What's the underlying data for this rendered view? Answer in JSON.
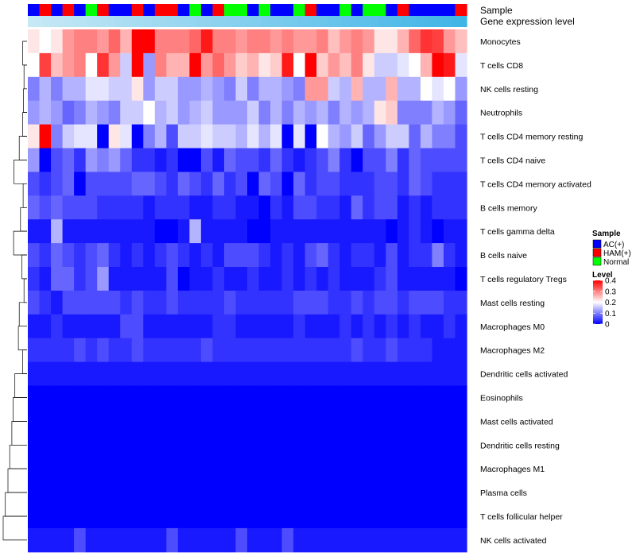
{
  "chart_data": {
    "type": "heatmap",
    "annotation_labels": [
      "Sample",
      "Gene expression level"
    ],
    "sample_groups": [
      "AC(+)",
      "HAM(+)",
      "AC(+)",
      "HAM(+)",
      "AC(+)",
      "Normal",
      "HAM(+)",
      "AC(+)",
      "AC(+)",
      "HAM(+)",
      "AC(+)",
      "HAM(+)",
      "HAM(+)",
      "AC(+)",
      "Normal",
      "AC(+)",
      "HAM(+)",
      "Normal",
      "Normal",
      "AC(+)",
      "Normal",
      "AC(+)",
      "AC(+)",
      "Normal",
      "HAM(+)",
      "AC(+)",
      "AC(+)",
      "Normal",
      "AC(+)",
      "Normal",
      "Normal",
      "AC(+)",
      "HAM(+)",
      "AC(+)",
      "AC(+)",
      "AC(+)",
      "AC(+)",
      "HAM(+)"
    ],
    "expression_gradient": [
      "#c7e9f5",
      "#3fb4e6"
    ],
    "rows": [
      "Monocytes",
      "T cells CD8",
      "NK cells resting",
      "Neutrophils",
      "T cells CD4 memory resting",
      "T cells CD4 naive",
      "T cells CD4 memory activated",
      "B cells memory",
      "T cells gamma delta",
      "B cells naive",
      "T cells regulatory  Tregs",
      "Mast cells resting",
      "Macrophages M0",
      "Macrophages M2",
      "Dendritic cells activated",
      "Eosinophils",
      "Mast cells activated",
      "Dendritic cells resting",
      "Macrophages M1",
      "Plasma cells",
      "T cells follicular helper",
      "NK cells activated"
    ],
    "values": [
      [
        0.22,
        0.2,
        0.22,
        0.28,
        0.3,
        0.3,
        0.28,
        0.32,
        0.26,
        0.4,
        0.4,
        0.3,
        0.3,
        0.3,
        0.32,
        0.38,
        0.3,
        0.3,
        0.28,
        0.3,
        0.3,
        0.28,
        0.3,
        0.28,
        0.28,
        0.3,
        0.25,
        0.28,
        0.3,
        0.28,
        0.22,
        0.22,
        0.26,
        0.32,
        0.36,
        0.35,
        0.28,
        0.25
      ],
      [
        0.2,
        0.35,
        0.25,
        0.28,
        0.3,
        0.2,
        0.36,
        0.28,
        0.16,
        0.4,
        0.12,
        0.3,
        0.26,
        0.26,
        0.4,
        0.28,
        0.32,
        0.28,
        0.24,
        0.26,
        0.22,
        0.24,
        0.38,
        0.2,
        0.4,
        0.24,
        0.28,
        0.25,
        0.3,
        0.22,
        0.16,
        0.16,
        0.18,
        0.2,
        0.26,
        0.4,
        0.38,
        0.18
      ],
      [
        0.1,
        0.14,
        0.1,
        0.14,
        0.14,
        0.18,
        0.18,
        0.16,
        0.16,
        0.22,
        0.12,
        0.16,
        0.16,
        0.12,
        0.12,
        0.14,
        0.12,
        0.1,
        0.16,
        0.1,
        0.14,
        0.14,
        0.12,
        0.1,
        0.28,
        0.28,
        0.16,
        0.14,
        0.26,
        0.14,
        0.14,
        0.26,
        0.14,
        0.14,
        0.2,
        0.18,
        0.2,
        0.12
      ],
      [
        0.12,
        0.14,
        0.12,
        0.08,
        0.1,
        0.14,
        0.12,
        0.1,
        0.16,
        0.16,
        0.2,
        0.14,
        0.16,
        0.12,
        0.14,
        0.16,
        0.12,
        0.12,
        0.12,
        0.16,
        0.1,
        0.14,
        0.1,
        0.14,
        0.12,
        0.14,
        0.1,
        0.14,
        0.12,
        0.14,
        0.22,
        0.24,
        0.1,
        0.1,
        0.1,
        0.14,
        0.12,
        0.08
      ],
      [
        0.22,
        0.4,
        0.1,
        0.16,
        0.18,
        0.18,
        0.0,
        0.22,
        0.18,
        0.0,
        0.1,
        0.14,
        0.06,
        0.16,
        0.16,
        0.18,
        0.16,
        0.16,
        0.14,
        0.18,
        0.14,
        0.18,
        0.0,
        0.18,
        0.0,
        0.2,
        0.14,
        0.12,
        0.16,
        0.08,
        0.12,
        0.16,
        0.16,
        0.08,
        0.14,
        0.1,
        0.1,
        0.06
      ],
      [
        0.12,
        0.0,
        0.06,
        0.08,
        0.04,
        0.12,
        0.1,
        0.12,
        0.08,
        0.04,
        0.04,
        0.02,
        0.04,
        0.0,
        0.0,
        0.06,
        0.02,
        0.08,
        0.06,
        0.06,
        0.04,
        0.08,
        0.04,
        0.02,
        0.04,
        0.06,
        0.1,
        0.04,
        0.0,
        0.06,
        0.06,
        0.1,
        0.04,
        0.08,
        0.06,
        0.06,
        0.06,
        0.06
      ],
      [
        0.06,
        0.04,
        0.06,
        0.08,
        0.0,
        0.06,
        0.06,
        0.06,
        0.06,
        0.08,
        0.08,
        0.06,
        0.04,
        0.08,
        0.06,
        0.04,
        0.08,
        0.04,
        0.06,
        0.0,
        0.08,
        0.06,
        0.0,
        0.08,
        0.04,
        0.06,
        0.06,
        0.04,
        0.04,
        0.04,
        0.06,
        0.06,
        0.04,
        0.08,
        0.06,
        0.04,
        0.04,
        0.04
      ],
      [
        0.08,
        0.06,
        0.08,
        0.06,
        0.06,
        0.06,
        0.04,
        0.04,
        0.04,
        0.04,
        0.02,
        0.04,
        0.04,
        0.04,
        0.02,
        0.02,
        0.04,
        0.04,
        0.02,
        0.02,
        0.0,
        0.04,
        0.02,
        0.06,
        0.06,
        0.04,
        0.04,
        0.02,
        0.08,
        0.04,
        0.06,
        0.06,
        0.02,
        0.04,
        0.02,
        0.04,
        0.04,
        0.04
      ],
      [
        0.02,
        0.02,
        0.14,
        0.02,
        0.02,
        0.02,
        0.02,
        0.02,
        0.02,
        0.02,
        0.02,
        0.0,
        0.0,
        0.02,
        0.14,
        0.02,
        0.02,
        0.02,
        0.02,
        0.0,
        0.0,
        0.02,
        0.02,
        0.02,
        0.02,
        0.02,
        0.02,
        0.02,
        0.02,
        0.02,
        0.02,
        0.0,
        0.02,
        0.04,
        0.02,
        0.0,
        0.02,
        0.02
      ],
      [
        0.06,
        0.04,
        0.08,
        0.06,
        0.04,
        0.06,
        0.08,
        0.04,
        0.02,
        0.04,
        0.02,
        0.04,
        0.06,
        0.04,
        0.02,
        0.04,
        0.02,
        0.06,
        0.06,
        0.06,
        0.04,
        0.02,
        0.04,
        0.02,
        0.06,
        0.08,
        0.04,
        0.02,
        0.04,
        0.04,
        0.02,
        0.06,
        0.02,
        0.04,
        0.04,
        0.1,
        0.04,
        0.02
      ],
      [
        0.04,
        0.02,
        0.08,
        0.08,
        0.04,
        0.06,
        0.12,
        0.02,
        0.02,
        0.02,
        0.02,
        0.02,
        0.06,
        0.0,
        0.02,
        0.02,
        0.04,
        0.02,
        0.02,
        0.04,
        0.02,
        0.02,
        0.04,
        0.02,
        0.04,
        0.02,
        0.04,
        0.02,
        0.02,
        0.02,
        0.04,
        0.06,
        0.02,
        0.02,
        0.02,
        0.02,
        0.02,
        0.0
      ],
      [
        0.06,
        0.04,
        0.02,
        0.06,
        0.06,
        0.06,
        0.06,
        0.06,
        0.04,
        0.06,
        0.04,
        0.04,
        0.06,
        0.04,
        0.04,
        0.04,
        0.04,
        0.06,
        0.04,
        0.04,
        0.04,
        0.04,
        0.04,
        0.06,
        0.06,
        0.06,
        0.04,
        0.04,
        0.06,
        0.04,
        0.06,
        0.06,
        0.04,
        0.06,
        0.06,
        0.06,
        0.04,
        0.04
      ],
      [
        0.02,
        0.02,
        0.04,
        0.02,
        0.02,
        0.02,
        0.02,
        0.02,
        0.06,
        0.06,
        0.02,
        0.02,
        0.02,
        0.02,
        0.02,
        0.02,
        0.04,
        0.04,
        0.02,
        0.02,
        0.02,
        0.02,
        0.02,
        0.04,
        0.02,
        0.02,
        0.02,
        0.04,
        0.02,
        0.04,
        0.02,
        0.04,
        0.02,
        0.04,
        0.02,
        0.02,
        0.04,
        0.02
      ],
      [
        0.04,
        0.04,
        0.04,
        0.04,
        0.06,
        0.04,
        0.06,
        0.04,
        0.04,
        0.06,
        0.04,
        0.04,
        0.04,
        0.04,
        0.04,
        0.06,
        0.04,
        0.04,
        0.04,
        0.04,
        0.04,
        0.04,
        0.04,
        0.04,
        0.04,
        0.04,
        0.04,
        0.04,
        0.06,
        0.04,
        0.04,
        0.06,
        0.04,
        0.04,
        0.04,
        0.02,
        0.02,
        0.02
      ],
      [
        0.02,
        0.02,
        0.02,
        0.02,
        0.02,
        0.02,
        0.02,
        0.02,
        0.02,
        0.02,
        0.02,
        0.02,
        0.02,
        0.02,
        0.02,
        0.02,
        0.02,
        0.02,
        0.02,
        0.02,
        0.02,
        0.02,
        0.02,
        0.02,
        0.02,
        0.02,
        0.02,
        0.02,
        0.02,
        0.02,
        0.02,
        0.02,
        0.02,
        0.02,
        0.02,
        0.02,
        0.02,
        0.02
      ],
      [
        0.0,
        0.0,
        0.0,
        0.0,
        0.0,
        0.0,
        0.0,
        0.0,
        0.0,
        0.0,
        0.0,
        0.0,
        0.0,
        0.0,
        0.0,
        0.0,
        0.0,
        0.0,
        0.0,
        0.0,
        0.0,
        0.0,
        0.0,
        0.0,
        0.0,
        0.0,
        0.0,
        0.0,
        0.0,
        0.0,
        0.0,
        0.0,
        0.0,
        0.0,
        0.0,
        0.0,
        0.0,
        0.0
      ],
      [
        0.0,
        0.0,
        0.0,
        0.0,
        0.0,
        0.0,
        0.0,
        0.0,
        0.0,
        0.0,
        0.0,
        0.0,
        0.0,
        0.0,
        0.0,
        0.0,
        0.0,
        0.0,
        0.0,
        0.0,
        0.0,
        0.0,
        0.0,
        0.0,
        0.0,
        0.0,
        0.0,
        0.0,
        0.0,
        0.0,
        0.0,
        0.0,
        0.0,
        0.0,
        0.0,
        0.0,
        0.0,
        0.0
      ],
      [
        0.0,
        0.0,
        0.0,
        0.0,
        0.0,
        0.0,
        0.0,
        0.0,
        0.0,
        0.0,
        0.0,
        0.0,
        0.0,
        0.0,
        0.0,
        0.0,
        0.0,
        0.0,
        0.0,
        0.0,
        0.0,
        0.0,
        0.0,
        0.0,
        0.0,
        0.0,
        0.0,
        0.0,
        0.0,
        0.0,
        0.0,
        0.0,
        0.0,
        0.0,
        0.0,
        0.0,
        0.0,
        0.0
      ],
      [
        0.0,
        0.0,
        0.0,
        0.0,
        0.0,
        0.0,
        0.0,
        0.0,
        0.0,
        0.0,
        0.0,
        0.0,
        0.0,
        0.0,
        0.0,
        0.0,
        0.0,
        0.0,
        0.0,
        0.0,
        0.0,
        0.0,
        0.0,
        0.0,
        0.0,
        0.0,
        0.0,
        0.0,
        0.0,
        0.0,
        0.0,
        0.0,
        0.0,
        0.0,
        0.0,
        0.0,
        0.0,
        0.0
      ],
      [
        0.0,
        0.0,
        0.0,
        0.0,
        0.0,
        0.0,
        0.0,
        0.0,
        0.0,
        0.0,
        0.0,
        0.0,
        0.0,
        0.0,
        0.0,
        0.0,
        0.0,
        0.0,
        0.0,
        0.0,
        0.0,
        0.0,
        0.0,
        0.0,
        0.0,
        0.0,
        0.0,
        0.0,
        0.0,
        0.0,
        0.0,
        0.0,
        0.0,
        0.0,
        0.0,
        0.0,
        0.0,
        0.0
      ],
      [
        0.0,
        0.0,
        0.0,
        0.0,
        0.0,
        0.0,
        0.0,
        0.0,
        0.0,
        0.0,
        0.0,
        0.0,
        0.0,
        0.0,
        0.0,
        0.0,
        0.0,
        0.0,
        0.0,
        0.0,
        0.0,
        0.0,
        0.0,
        0.0,
        0.0,
        0.0,
        0.0,
        0.0,
        0.0,
        0.0,
        0.0,
        0.0,
        0.0,
        0.0,
        0.0,
        0.0,
        0.0,
        0.0
      ],
      [
        0.02,
        0.02,
        0.02,
        0.02,
        0.06,
        0.02,
        0.02,
        0.02,
        0.02,
        0.02,
        0.02,
        0.02,
        0.06,
        0.02,
        0.02,
        0.02,
        0.02,
        0.02,
        0.06,
        0.02,
        0.02,
        0.02,
        0.06,
        0.02,
        0.02,
        0.02,
        0.02,
        0.02,
        0.02,
        0.02,
        0.02,
        0.02,
        0.02,
        0.02,
        0.02,
        0.02,
        0.02,
        0.02
      ]
    ],
    "dendrogram_merges": [
      [
        1,
        1,
        2,
        1.0
      ],
      [
        1,
        2,
        3,
        0.7
      ],
      [
        2,
        4,
        5,
        1.0
      ],
      [
        2,
        5,
        6,
        1.8
      ],
      [
        1,
        6,
        7,
        3.0
      ],
      [
        2,
        3,
        4,
        0.8
      ],
      [
        2,
        7,
        8,
        0.9
      ],
      [
        2,
        8,
        9,
        1.5
      ],
      [
        1,
        9,
        10,
        3.1
      ],
      [
        2,
        11,
        12,
        0.7
      ],
      [
        2,
        10,
        11,
        1.2
      ],
      [
        2,
        12,
        13,
        1.8
      ],
      [
        2,
        14,
        15,
        1.0
      ],
      [
        2,
        13,
        14,
        2.0
      ],
      [
        2,
        15,
        16,
        2.8
      ],
      [
        1,
        16,
        17,
        3.2
      ],
      [
        2,
        17,
        18,
        3.5
      ],
      [
        2,
        18,
        19,
        4.0
      ],
      [
        2,
        19,
        20,
        4.4
      ],
      [
        1,
        20,
        21,
        5.0
      ],
      [
        1,
        21,
        22,
        5.5
      ]
    ],
    "legend_sample": {
      "title": "Sample",
      "items": [
        {
          "label": "AC(+)",
          "color": "#0000ff"
        },
        {
          "label": "HAM(+)",
          "color": "#ff0000"
        },
        {
          "label": "Normal",
          "color": "#00ff00"
        }
      ]
    },
    "legend_level": {
      "title": "Level",
      "ticks": [
        0.4,
        0.3,
        0.2,
        0.1,
        0
      ],
      "tick_labels": [
        "0.4",
        "0.3",
        "0.2",
        "0.1",
        "0"
      ],
      "range": [
        0,
        0.4
      ],
      "colors": [
        "#0000ff",
        "#ffffff",
        "#ff0000"
      ]
    }
  }
}
